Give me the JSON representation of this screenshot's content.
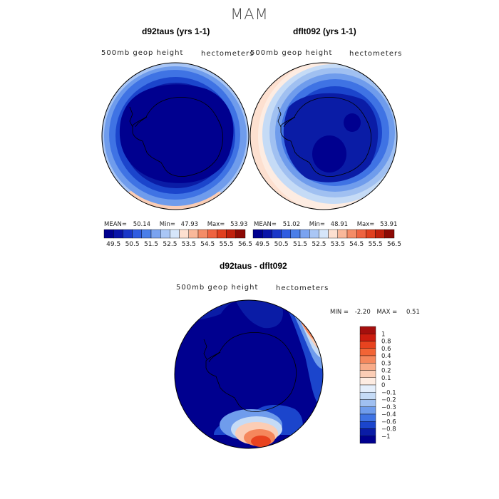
{
  "figure": {
    "title": "MAM"
  },
  "chart_data": [
    {
      "type": "map",
      "title": "d92taus (yrs 1-1)",
      "field_label": "500mb geop height",
      "units_label": "hectometers",
      "stats": {
        "mean_label": "MEAN=",
        "mean": "50.14",
        "min_label": "Min=",
        "min": "47.93",
        "max_label": "Max=",
        "max": "53.93"
      },
      "colorbar_ticks": [
        "49.5",
        "50.5",
        "51.5",
        "52.5",
        "53.5",
        "54.5",
        "55.5",
        "56.5"
      ],
      "colors": [
        "#00008f",
        "#0a14a8",
        "#1a37c8",
        "#2f5ce0",
        "#4a7ee8",
        "#7aa3f0",
        "#a9c6f5",
        "#d6e6fa",
        "#fde0d0",
        "#f9b89a",
        "#f48c67",
        "#ee6340",
        "#e0401f",
        "#c0210d",
        "#8c0a05"
      ]
    },
    {
      "type": "map",
      "title": "dflt092 (yrs 1-1)",
      "field_label": "500mb geop height",
      "units_label": "hectometers",
      "stats": {
        "mean_label": "MEAN=",
        "mean": "51.02",
        "min_label": "Min=",
        "min": "48.91",
        "max_label": "Max=",
        "max": "53.91"
      },
      "colorbar_ticks": [
        "49.5",
        "50.5",
        "51.5",
        "52.5",
        "53.5",
        "54.5",
        "55.5",
        "56.5"
      ]
    },
    {
      "type": "map",
      "title": "d92taus - dflt092",
      "field_label": "500mb geop height",
      "units_label": "hectometers",
      "stats": {
        "min_label": "MIN =",
        "min": "-2.20",
        "max_label": "MAX =",
        "max": "0.51"
      },
      "colorbar_levels": [
        "1",
        "0.8",
        "0.6",
        "0.4",
        "0.3",
        "0.2",
        "0.1",
        "0",
        "−0.1",
        "−0.2",
        "−0.3",
        "−0.4",
        "−0.6",
        "−0.8",
        "−1"
      ],
      "colors": [
        "#a50f0d",
        "#cc1d0f",
        "#e8431f",
        "#f26435",
        "#f5875c",
        "#f8ab88",
        "#fbcdb5",
        "#fdece2",
        "#e4eefb",
        "#c5dbf6",
        "#a0c0f1",
        "#6f9cec",
        "#3f73e4",
        "#1b45cc",
        "#0a1ca6",
        "#00008f"
      ]
    }
  ]
}
